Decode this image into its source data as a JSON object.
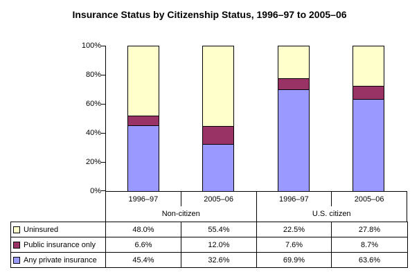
{
  "title": "Insurance Status by Citizenship Status, 1996–97 to 2005–06",
  "chart_data": {
    "type": "bar",
    "stacked": true,
    "title": "Insurance Status by Citizenship Status, 1996–97 to 2005–06",
    "categories": [
      "1996–97",
      "2005–06",
      "1996–97",
      "2005–06"
    ],
    "groups": [
      "Non-citizen",
      "U.S. citizen"
    ],
    "series": [
      {
        "name": "Uninsured",
        "color": "#FFFFCC",
        "values": [
          48.0,
          55.4,
          22.5,
          27.8
        ]
      },
      {
        "name": "Public insurance only",
        "color": "#993366",
        "values": [
          6.6,
          12.0,
          7.6,
          8.7
        ]
      },
      {
        "name": "Any private insurance",
        "color": "#9999FF",
        "values": [
          45.4,
          32.6,
          69.9,
          63.6
        ]
      }
    ],
    "stack_order_bottom_to_top": [
      "Any private insurance",
      "Public insurance only",
      "Uninsured"
    ],
    "y_axis": {
      "min": 0,
      "max": 100,
      "ticks": [
        "0%",
        "20%",
        "40%",
        "60%",
        "80%",
        "100%"
      ]
    },
    "grid": false,
    "legend_position": "data-table-left"
  },
  "table": {
    "rows": [
      {
        "label": "Uninsured",
        "swatch": "#FFFFCC",
        "values": [
          "48.0%",
          "55.4%",
          "22.5%",
          "27.8%"
        ]
      },
      {
        "label": "Public insurance only",
        "swatch": "#993366",
        "values": [
          "6.6%",
          "12.0%",
          "7.6%",
          "8.7%"
        ]
      },
      {
        "label": "Any private insurance",
        "swatch": "#9999FF",
        "values": [
          "45.4%",
          "32.6%",
          "69.9%",
          "63.6%"
        ]
      }
    ]
  }
}
